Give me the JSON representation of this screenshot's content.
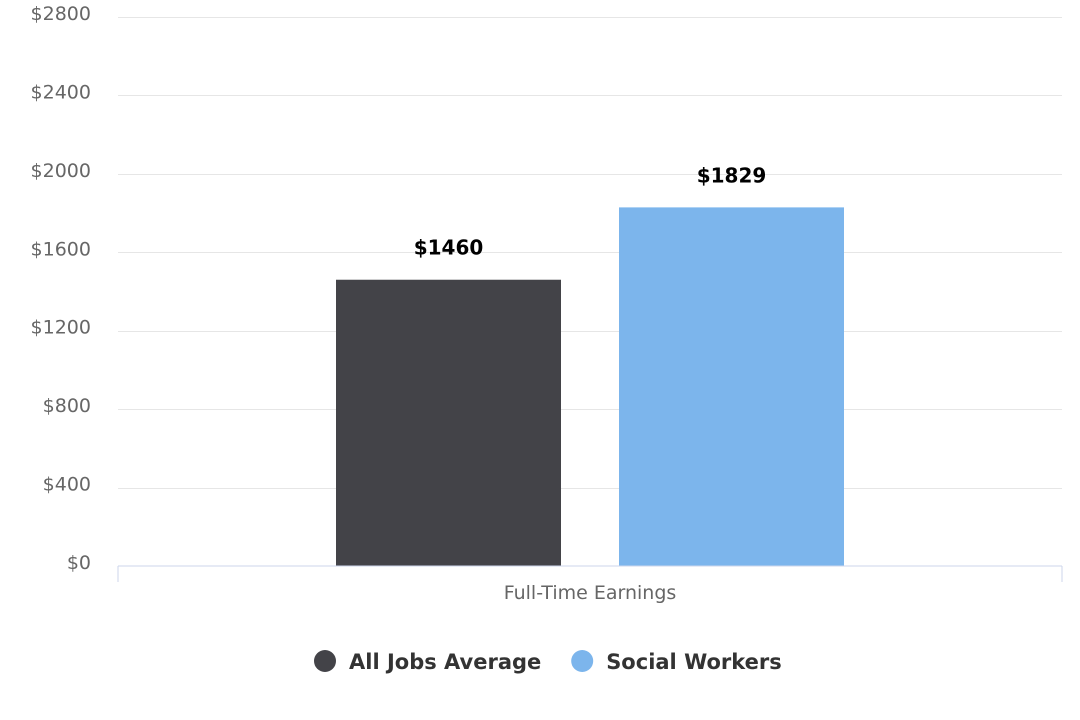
{
  "chart_data": {
    "type": "bar",
    "categories": [
      "Full-Time Earnings"
    ],
    "series": [
      {
        "name": "All Jobs Average",
        "values": [
          1460
        ],
        "color": "#434348",
        "data_label": "$1460"
      },
      {
        "name": "Social Workers",
        "values": [
          1829
        ],
        "color": "#7cb5ec",
        "data_label": "$1829"
      }
    ],
    "title": "",
    "xlabel": "",
    "ylabel": "",
    "ylim": [
      0,
      2800
    ],
    "yticks": [
      0,
      400,
      800,
      1200,
      1600,
      2000,
      2400,
      2800
    ],
    "ytick_labels": [
      "$0",
      "$400",
      "$800",
      "$1200",
      "$1600",
      "$2000",
      "$2400",
      "$2800"
    ],
    "grid": true,
    "legend_position": "bottom-center"
  }
}
